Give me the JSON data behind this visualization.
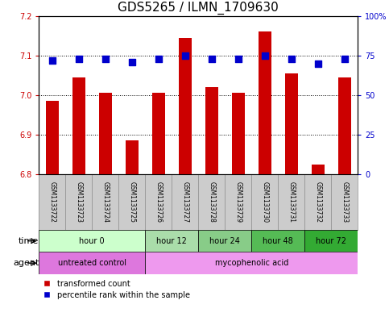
{
  "title": "GDS5265 / ILMN_1709630",
  "samples": [
    "GSM1133722",
    "GSM1133723",
    "GSM1133724",
    "GSM1133725",
    "GSM1133726",
    "GSM1133727",
    "GSM1133728",
    "GSM1133729",
    "GSM1133730",
    "GSM1133731",
    "GSM1133732",
    "GSM1133733"
  ],
  "bar_values": [
    6.985,
    7.045,
    7.005,
    6.885,
    7.005,
    7.145,
    7.02,
    7.005,
    7.16,
    7.055,
    6.825,
    7.045
  ],
  "dot_values": [
    72,
    73,
    73,
    71,
    73,
    75,
    73,
    73,
    75,
    73,
    70,
    73
  ],
  "ylim": [
    6.8,
    7.2
  ],
  "y_ticks": [
    6.8,
    6.9,
    7.0,
    7.1,
    7.2
  ],
  "y2_ticks": [
    0,
    25,
    50,
    75,
    100
  ],
  "bar_color": "#cc0000",
  "dot_color": "#0000cc",
  "bar_bottom": 6.8,
  "time_groups": [
    {
      "label": "hour 0",
      "start": 0,
      "end": 4,
      "color": "#ccffcc"
    },
    {
      "label": "hour 12",
      "start": 4,
      "end": 6,
      "color": "#aaddaa"
    },
    {
      "label": "hour 24",
      "start": 6,
      "end": 8,
      "color": "#88cc88"
    },
    {
      "label": "hour 48",
      "start": 8,
      "end": 10,
      "color": "#55bb55"
    },
    {
      "label": "hour 72",
      "start": 10,
      "end": 12,
      "color": "#33aa33"
    }
  ],
  "agent_groups": [
    {
      "label": "untreated control",
      "start": 0,
      "end": 4,
      "color": "#dd77dd"
    },
    {
      "label": "mycophenolic acid",
      "start": 4,
      "end": 12,
      "color": "#ee99ee"
    }
  ],
  "legend_items": [
    {
      "label": "transformed count",
      "color": "#cc0000"
    },
    {
      "label": "percentile rank within the sample",
      "color": "#0000cc"
    }
  ],
  "grid_style": "dotted",
  "bar_width": 0.5,
  "dot_size": 35,
  "title_fontsize": 11,
  "tick_fontsize": 7,
  "label_fontsize": 8,
  "sample_bg_color": "#cccccc",
  "sample_border_color": "#888888"
}
